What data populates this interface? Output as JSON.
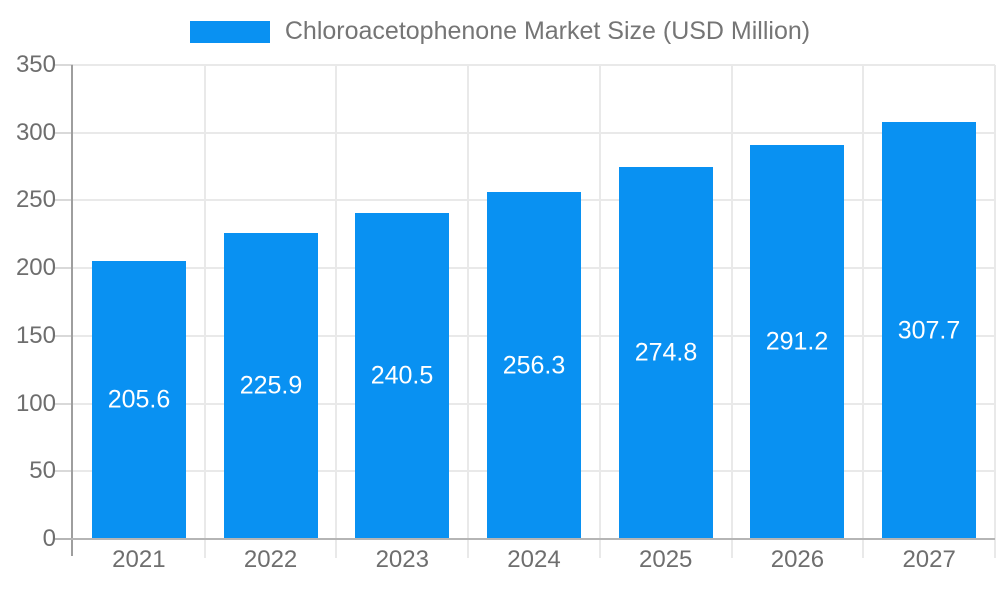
{
  "legend": {
    "label": "Chloroacetophenone Market Size (USD Million)",
    "swatch_color": "#0991f2"
  },
  "chart_data": {
    "type": "bar",
    "title": "Chloroacetophenone Market Size (USD Million)",
    "categories": [
      "2021",
      "2022",
      "2023",
      "2024",
      "2025",
      "2026",
      "2027"
    ],
    "series": [
      {
        "name": "Chloroacetophenone Market Size (USD Million)",
        "values": [
          205.6,
          225.9,
          240.5,
          256.3,
          274.8,
          291.2,
          307.7
        ]
      }
    ],
    "value_labels": [
      "205.6",
      "225.9",
      "240.5",
      "256.3",
      "274.8",
      "291.2",
      "307.7"
    ],
    "xlabel": "",
    "ylabel": "",
    "ylim": [
      0,
      350
    ],
    "yticks": [
      0,
      50,
      100,
      150,
      200,
      250,
      300,
      350
    ],
    "grid": true,
    "legend_position": "top-center",
    "colors": {
      "bar": "#0991f2",
      "value_label": "#ffffff",
      "axis_text": "#6e6e6e",
      "legend_text": "#757575",
      "gridline": "#e9e9e9",
      "axis_line": "#9e9e9e",
      "baseline": "#b5b5b5"
    }
  }
}
